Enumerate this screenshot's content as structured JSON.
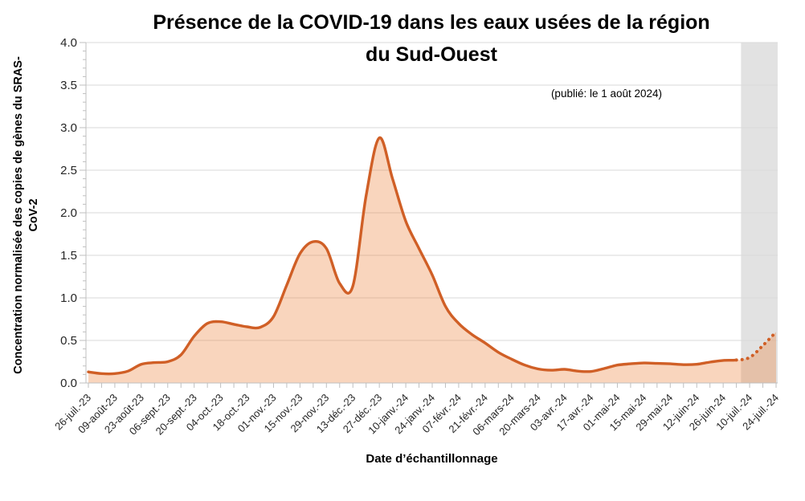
{
  "chart_data": {
    "type": "area",
    "title_lines": [
      "Présence de la COVID-19 dans les eaux usées de la région",
      "du Sud-Ouest"
    ],
    "annotation": "(publié: le 1 août 2024)",
    "xlabel": "Date d’échantillonnage",
    "ylabel_lines": [
      "Concentration normalisée des copies de gènes du SRAS-",
      "CoV-2"
    ],
    "ylim": [
      0,
      4.0
    ],
    "y_major_step": 0.5,
    "y_minor_step": 0.1,
    "y_tick_labels": [
      "0.0",
      "0.5",
      "1.0",
      "1.5",
      "2.0",
      "2.5",
      "3.0",
      "3.5",
      "4.0"
    ],
    "x_tick_labels": [
      "26-juil.-23",
      "09-août-23",
      "23-août-23",
      "06-sept.-23",
      "20-sept.-23",
      "04-oct.-23",
      "18-oct.-23",
      "01-nov.-23",
      "15-nov.-23",
      "29-nov.-23",
      "13-déc.-23",
      "27-déc.-23",
      "10-janv.-24",
      "24-janv.-24",
      "07-févr.-24",
      "21-févr.-24",
      "06-mars-24",
      "20-mars-24",
      "03-avr.-24",
      "17-avr.-24",
      "01-mai-24",
      "15-mai-24",
      "29-mai-24",
      "12-juin-24",
      "26-juin-24",
      "10-juil.-24",
      "24-juil.-24"
    ],
    "points_per_label": 2,
    "series": [
      {
        "name": "Concentration normalisée SRAS-CoV-2",
        "values": [
          0.13,
          0.11,
          0.11,
          0.14,
          0.22,
          0.24,
          0.25,
          0.33,
          0.55,
          0.7,
          0.72,
          0.69,
          0.66,
          0.655,
          0.78,
          1.15,
          1.52,
          1.66,
          1.58,
          1.17,
          1.14,
          2.2,
          2.88,
          2.4,
          1.9,
          1.58,
          1.27,
          0.9,
          0.7,
          0.57,
          0.47,
          0.36,
          0.28,
          0.21,
          0.165,
          0.15,
          0.16,
          0.14,
          0.135,
          0.17,
          0.21,
          0.225,
          0.235,
          0.23,
          0.225,
          0.215,
          0.22,
          0.245,
          0.265,
          0.27,
          0.3,
          0.44,
          0.6
        ],
        "forecast_start_index": 49,
        "forecast_style": "dotted"
      }
    ],
    "grid": "horizontal-major",
    "legend": "none",
    "colors": {
      "line": "#D05F26",
      "fill": "#ED7D31",
      "fill_opacity": 0.32,
      "band": "#E2E2E2",
      "grid": "#D9D9D9",
      "axis": "#BFBFBF",
      "tick_text": "#262626"
    }
  }
}
